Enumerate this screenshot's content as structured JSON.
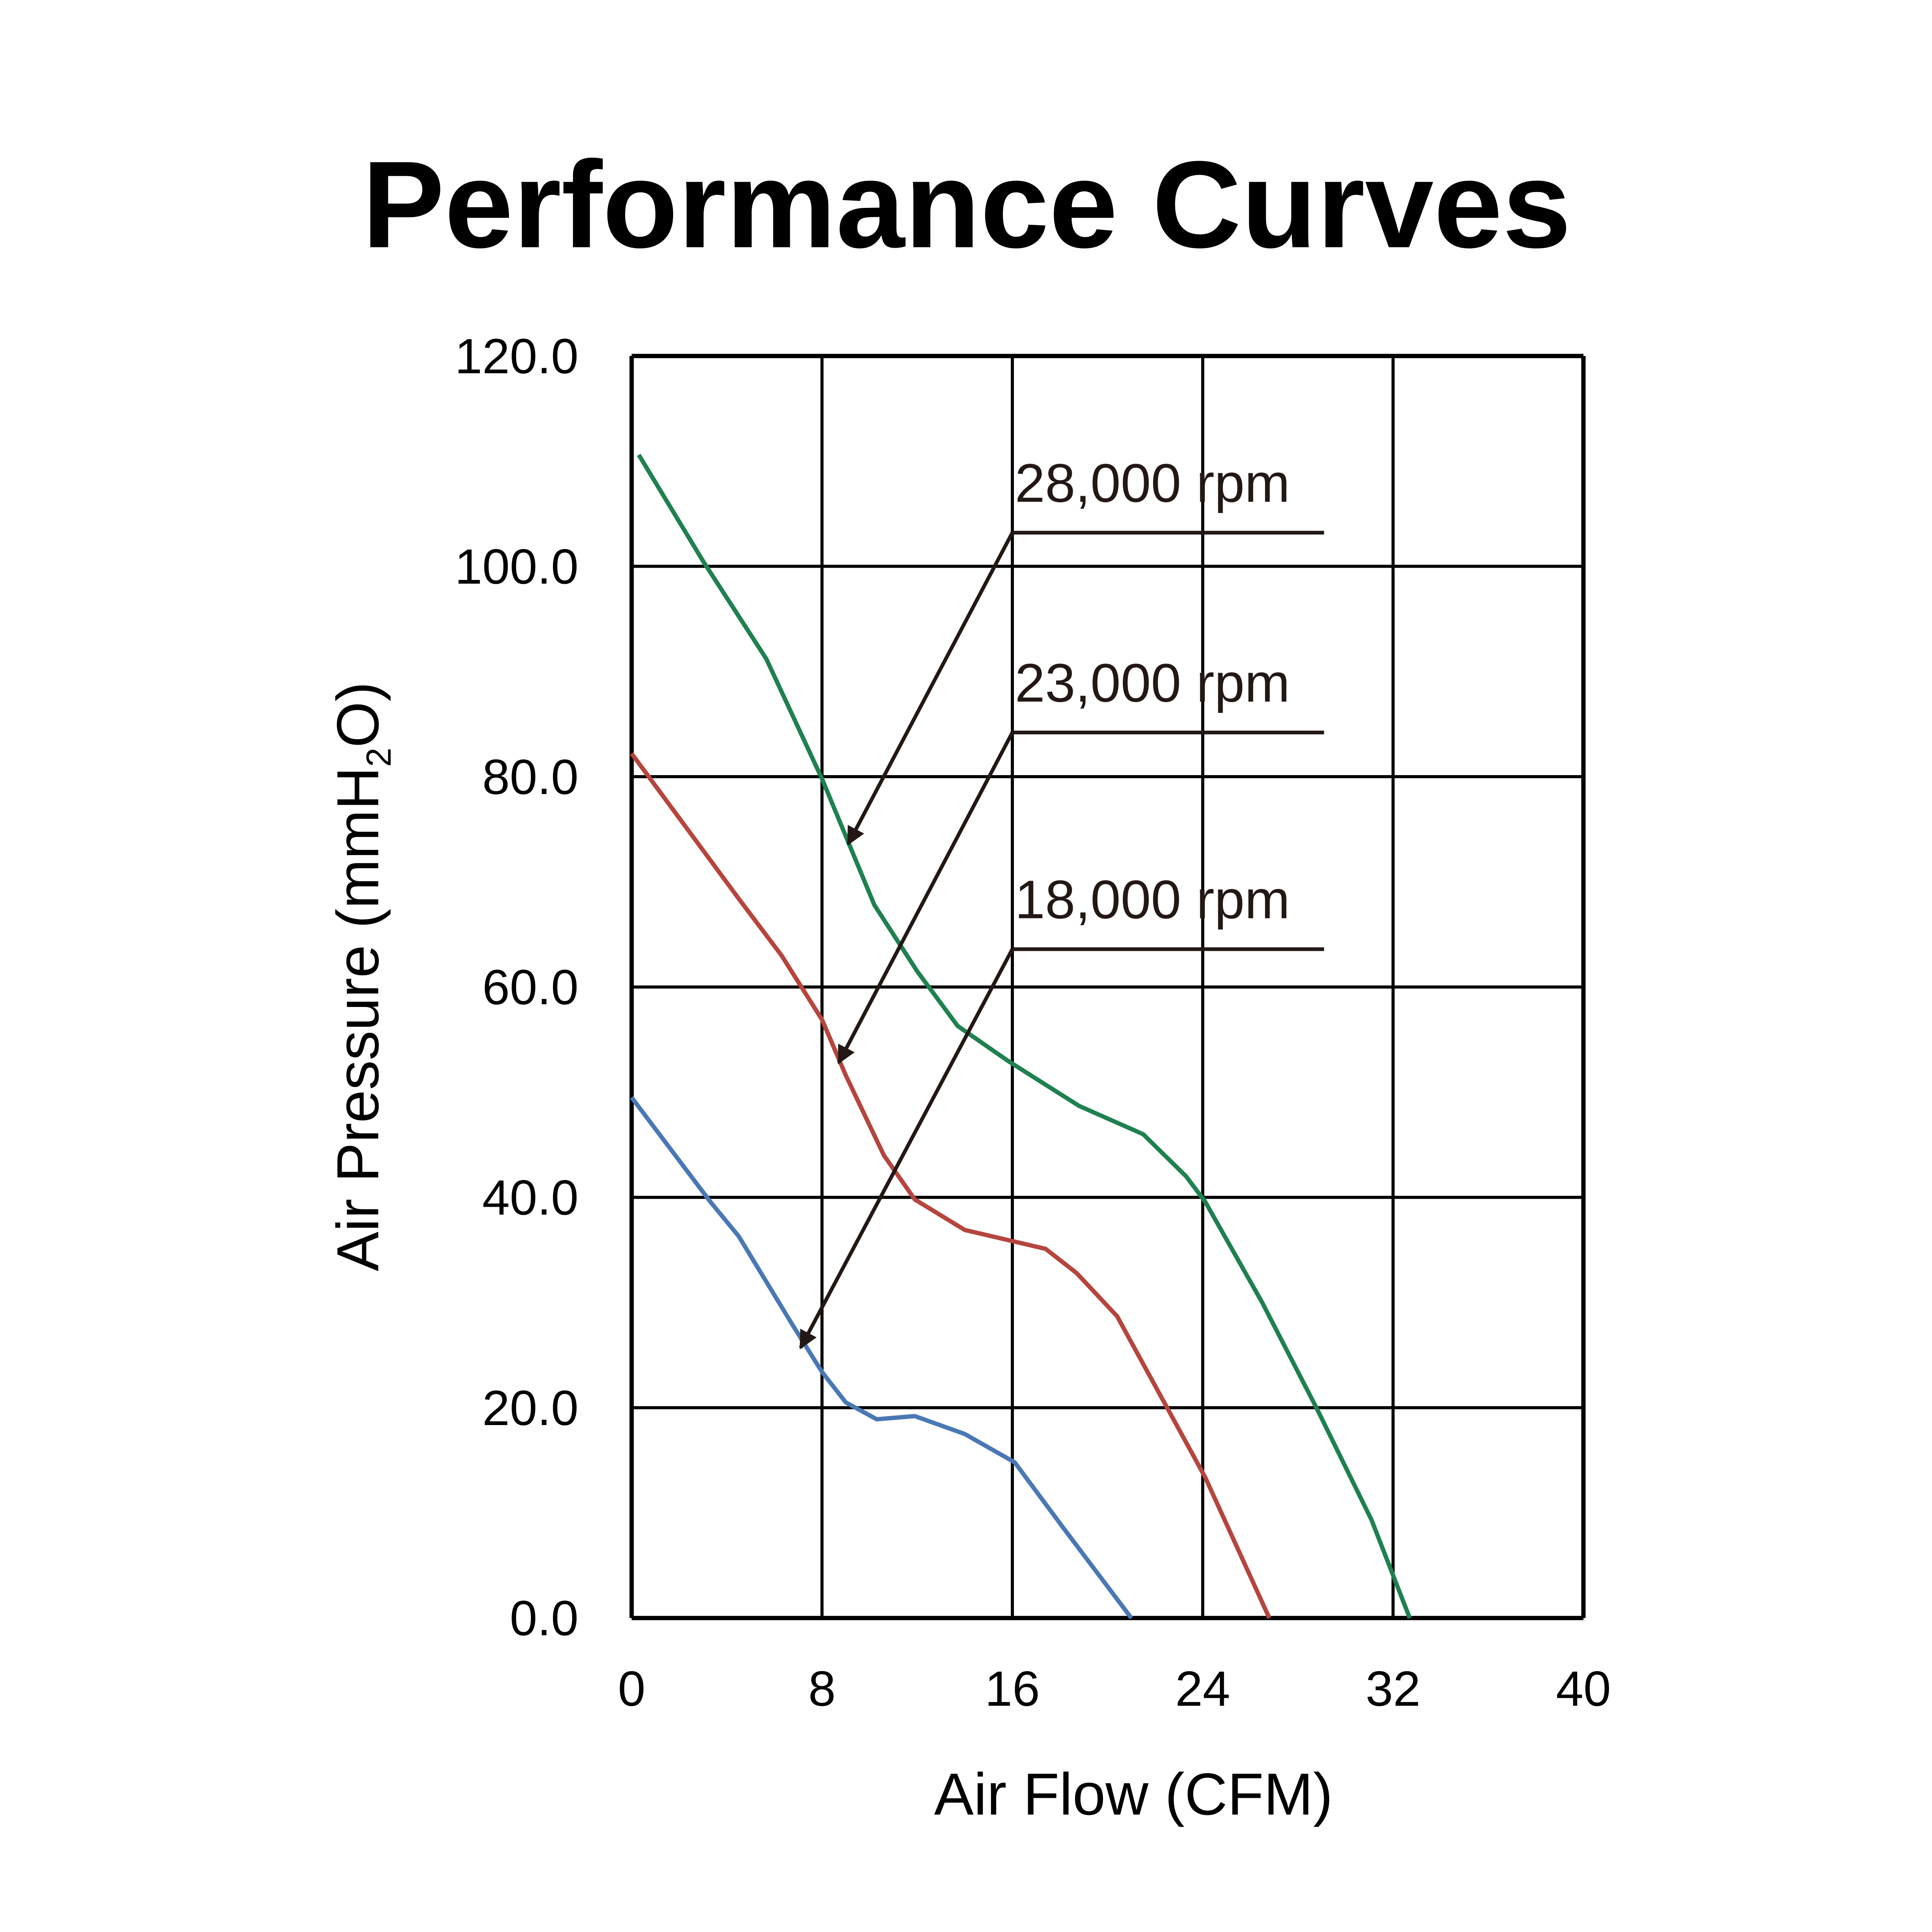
{
  "chart_data": {
    "type": "line",
    "title": "Performance Curves",
    "xlabel": "Air Flow (CFM)",
    "ylabel_main": "Air Pressure (mmH",
    "ylabel_sub": "2",
    "ylabel_end": "O)",
    "xlim": [
      0,
      40
    ],
    "ylim": [
      0,
      120
    ],
    "xticks": [
      "0",
      "8",
      "16",
      "24",
      "32",
      "40"
    ],
    "xtick_values": [
      0,
      8,
      16,
      24,
      32,
      40
    ],
    "yticks": [
      "0.0",
      "20.0",
      "40.0",
      "60.0",
      "80.0",
      "100.0",
      "120.0"
    ],
    "ytick_values": [
      0,
      20,
      40,
      60,
      80,
      100,
      120
    ],
    "grid": true,
    "series": [
      {
        "name": "28,000 rpm",
        "color": "#1f8050",
        "x": [
          0.3,
          3,
          5.66,
          8.0,
          10.2,
          12,
          13.7,
          15.8,
          18.8,
          21.5,
          23.3,
          24.1,
          26.5,
          28.8,
          31.1,
          32.7
        ],
        "y": [
          110.6,
          100.5,
          91.2,
          79.8,
          67.8,
          61.5,
          56.3,
          53,
          48.7,
          46,
          42,
          39.6,
          30,
          19.9,
          9.3,
          0
        ],
        "label": "28,000 rpm",
        "arrow_from": [
          16.0,
          103.2
        ],
        "arrow_to": [
          9.1,
          73.6
        ],
        "leader_end": 29.1
      },
      {
        "name": "23,000 rpm",
        "color": "#b5453e",
        "x": [
          0,
          4.5,
          6.3,
          8.0,
          9.0,
          10.6,
          11.9,
          14,
          17.4,
          18.7,
          20.4,
          24.1,
          26.8
        ],
        "y": [
          82.2,
          68.4,
          63,
          56.9,
          51.6,
          44,
          39.8,
          36.9,
          35.1,
          32.8,
          28.7,
          13.4,
          0
        ],
        "label": "23,000 rpm",
        "arrow_from": [
          16.0,
          84.2
        ],
        "arrow_to": [
          8.7,
          52.8
        ],
        "leader_end": 29.1
      },
      {
        "name": "18,000 rpm",
        "color": "#4a78b5",
        "x": [
          0,
          3.3,
          4.5,
          6.7,
          8.0,
          9.0,
          10.3,
          11.9,
          14,
          16.1,
          18.1,
          21
        ],
        "y": [
          49.5,
          39.6,
          36.3,
          28.1,
          23.4,
          20.5,
          18.9,
          19.2,
          17.5,
          14.8,
          8.7,
          0
        ],
        "label": "18,000 rpm",
        "arrow_from": [
          16.0,
          63.6
        ],
        "arrow_to": [
          7.1,
          25.7
        ],
        "leader_end": 29.1
      }
    ]
  }
}
